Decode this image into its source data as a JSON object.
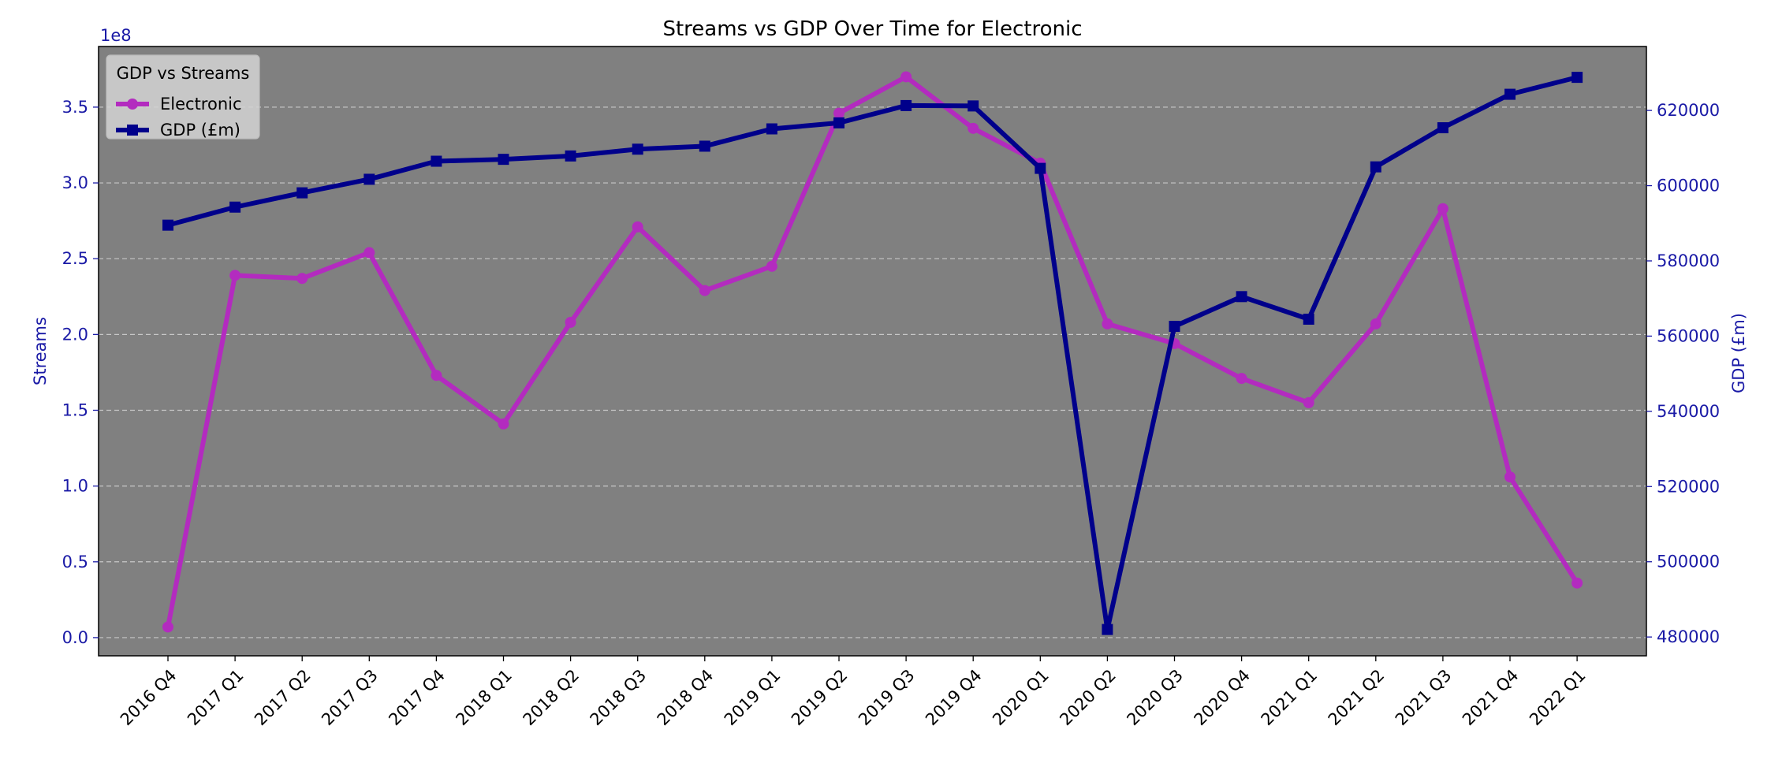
{
  "chart_data": {
    "type": "line",
    "title": "Streams vs GDP Over Time for Electronic",
    "categories": [
      "2016 Q4",
      "2017 Q1",
      "2017 Q2",
      "2017 Q3",
      "2017 Q4",
      "2018 Q1",
      "2018 Q2",
      "2018 Q3",
      "2018 Q4",
      "2019 Q1",
      "2019 Q2",
      "2019 Q3",
      "2019 Q4",
      "2020 Q1",
      "2020 Q2",
      "2020 Q3",
      "2020 Q4",
      "2021 Q1",
      "2021 Q2",
      "2021 Q3",
      "2021 Q4",
      "2022 Q1"
    ],
    "left_axis": {
      "label": "Streams",
      "multiplier_label": "1e8",
      "ylim": [
        -0.12,
        3.9
      ],
      "ticks": [
        0.0,
        0.5,
        1.0,
        1.5,
        2.0,
        2.5,
        3.0,
        3.5
      ],
      "tick_labels": [
        "0.0",
        "0.5",
        "1.0",
        "1.5",
        "2.0",
        "2.5",
        "3.0",
        "3.5"
      ],
      "color": "#1a1aa6"
    },
    "right_axis": {
      "label": "GDP (£m)",
      "ylim": [
        475000,
        637000
      ],
      "ticks": [
        480000,
        500000,
        520000,
        540000,
        560000,
        580000,
        600000,
        620000
      ],
      "tick_labels": [
        "480000",
        "500000",
        "520000",
        "540000",
        "560000",
        "580000",
        "600000",
        "620000"
      ],
      "color": "#1a1aa6"
    },
    "series": [
      {
        "name": "Electronic",
        "axis": "left",
        "color": "#b32bbf",
        "marker": "circle",
        "values": [
          0.07,
          2.39,
          2.37,
          2.54,
          1.73,
          1.41,
          2.08,
          2.71,
          2.29,
          2.45,
          3.46,
          3.7,
          3.36,
          3.13,
          2.07,
          1.94,
          1.71,
          1.55,
          2.07,
          2.83,
          1.06,
          0.36
        ]
      },
      {
        "name": "GDP (£m)",
        "axis": "right",
        "color": "#00008b",
        "marker": "square",
        "values": [
          589500,
          594300,
          598100,
          601700,
          606500,
          607000,
          607900,
          609700,
          610500,
          615100,
          616700,
          621300,
          621200,
          604600,
          482000,
          562600,
          570500,
          564500,
          605000,
          615400,
          624300,
          628800
        ]
      }
    ],
    "legend": {
      "title": "GDP vs Streams",
      "placement": "top-left",
      "entries": [
        "Electronic",
        "GDP (£m)"
      ]
    },
    "grid": {
      "y": true,
      "x": false,
      "style": "dashed"
    },
    "plot_background": "#808080"
  }
}
